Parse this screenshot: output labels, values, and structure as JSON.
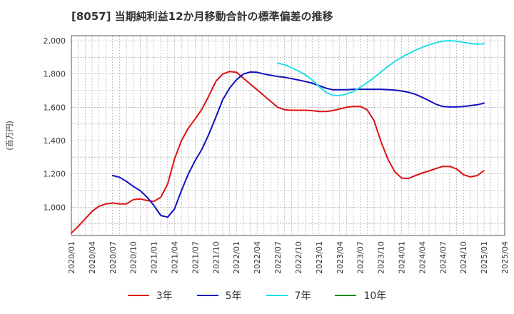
{
  "chart_data": {
    "type": "line",
    "title": "[8057]  当期純利益12か月移動合計の標準偏差の推移",
    "ylabel": "(百万円)",
    "xlabel": "",
    "ylim": [
      830,
      2030
    ],
    "xlim": [
      0,
      63
    ],
    "grid": true,
    "legend_position": "bottom",
    "y_ticks": [
      1000,
      1200,
      1400,
      1600,
      1800,
      2000
    ],
    "y_tick_labels": [
      "1,000",
      "1,200",
      "1,400",
      "1,600",
      "1,800",
      "2,000"
    ],
    "x_ticks": [
      0,
      3,
      6,
      9,
      12,
      15,
      18,
      21,
      24,
      27,
      30,
      33,
      36,
      39,
      42,
      45,
      48,
      51,
      54,
      57,
      60,
      63
    ],
    "x_tick_labels": [
      "2020/01",
      "2020/04",
      "2020/07",
      "2020/10",
      "2021/01",
      "2021/04",
      "2021/07",
      "2021/10",
      "2022/01",
      "2022/04",
      "2022/07",
      "2022/10",
      "2023/01",
      "2023/04",
      "2023/07",
      "2023/10",
      "2024/01",
      "2024/04",
      "2024/07",
      "2024/10",
      "2025/01",
      "2025/04"
    ],
    "series": [
      {
        "name": "3年",
        "color": "#e01010",
        "start": 0,
        "values": [
          845,
          885,
          930,
          975,
          1005,
          1020,
          1025,
          1020,
          1020,
          1045,
          1050,
          1040,
          1035,
          1060,
          1140,
          1290,
          1400,
          1475,
          1530,
          1590,
          1670,
          1755,
          1800,
          1815,
          1810,
          1775,
          1740,
          1705,
          1670,
          1635,
          1600,
          1585,
          1582,
          1582,
          1582,
          1580,
          1575,
          1575,
          1580,
          1590,
          1600,
          1605,
          1605,
          1585,
          1520,
          1395,
          1290,
          1215,
          1175,
          1172,
          1190,
          1205,
          1218,
          1232,
          1245,
          1245,
          1230,
          1195,
          1182,
          1190,
          1220
        ]
      },
      {
        "name": "5年",
        "color": "#1010c0",
        "start": 6,
        "values": [
          1190,
          1180,
          1155,
          1125,
          1100,
          1060,
          1010,
          950,
          940,
          990,
          1100,
          1200,
          1280,
          1350,
          1440,
          1540,
          1645,
          1715,
          1765,
          1800,
          1812,
          1810,
          1800,
          1792,
          1785,
          1780,
          1772,
          1764,
          1755,
          1745,
          1730,
          1715,
          1705,
          1705,
          1705,
          1708,
          1708,
          1708,
          1708,
          1708,
          1706,
          1703,
          1698,
          1690,
          1678,
          1660,
          1640,
          1618,
          1605,
          1602,
          1602,
          1605,
          1610,
          1615,
          1625
        ]
      },
      {
        "name": "7年",
        "color": "#22e0e8",
        "start": 30,
        "values": [
          1865,
          1855,
          1838,
          1818,
          1795,
          1765,
          1725,
          1690,
          1672,
          1670,
          1680,
          1695,
          1720,
          1748,
          1778,
          1812,
          1845,
          1875,
          1900,
          1922,
          1942,
          1960,
          1975,
          1988,
          1997,
          2000,
          1997,
          1990,
          1983,
          1980,
          1982
        ]
      },
      {
        "name": "10年",
        "color": "#118811",
        "start": 0,
        "values": []
      }
    ]
  }
}
